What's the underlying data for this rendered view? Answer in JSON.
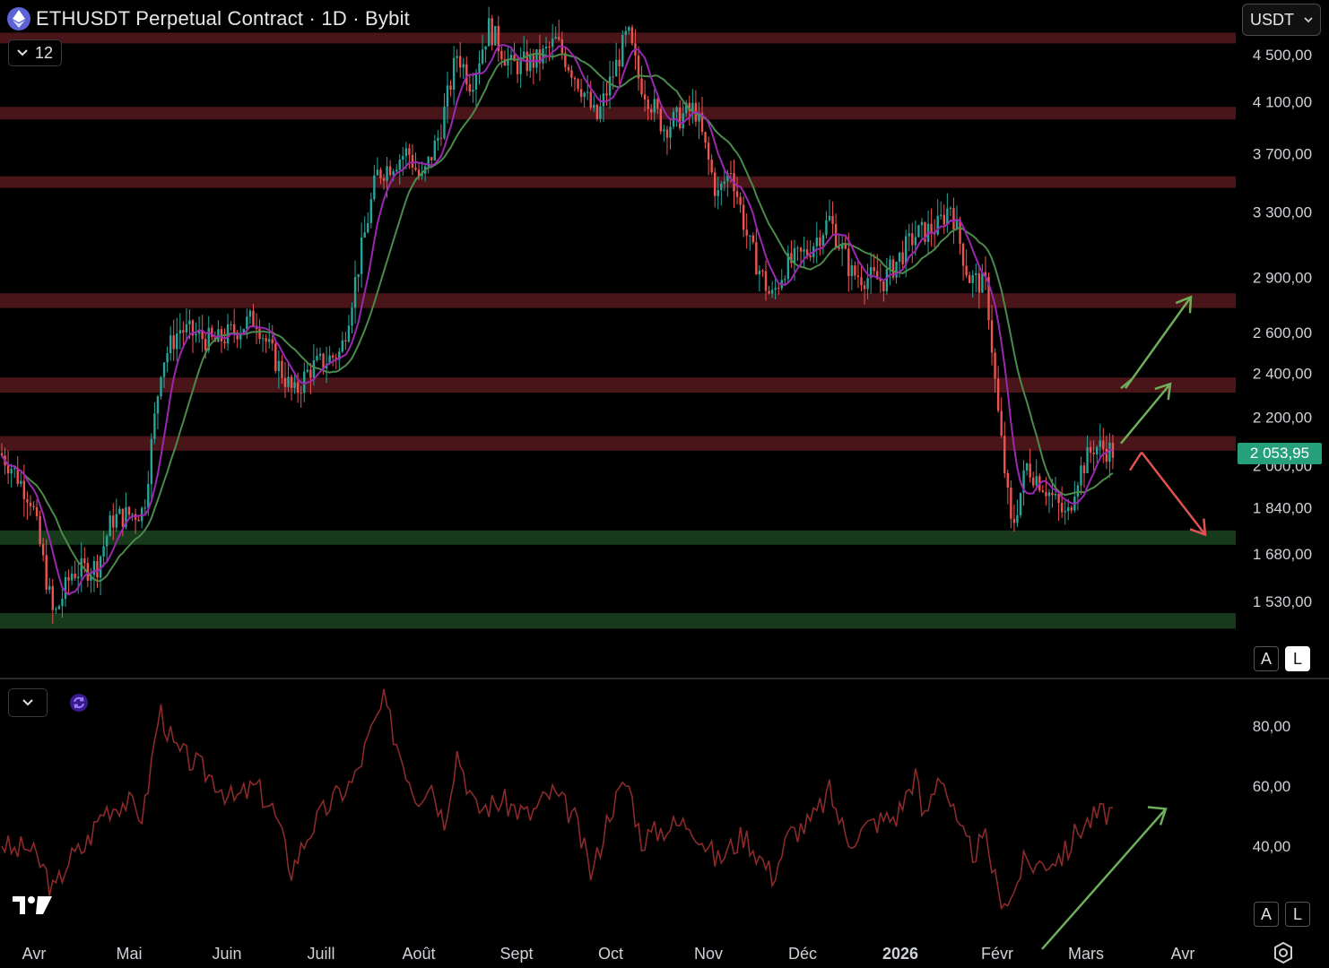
{
  "header": {
    "title": "ETHUSDT Perpetual Contract · 1D · Bybit",
    "indicators_count": "12",
    "currency": "USDT"
  },
  "scale_buttons": {
    "auto": "A",
    "log": "L"
  },
  "current_price": "2 053,95",
  "colors": {
    "up": "#26a69a",
    "down": "#ef5350",
    "resistance_zone": "#4a1518",
    "support_zone": "#173a1c",
    "ma_fast": "#9c27b0",
    "ma_slow": "#4c8a4c",
    "rsi_line": "#8b2a2a",
    "arrow_up": "#6fae5a",
    "arrow_down": "#e05252",
    "price_tag": "#26a07a"
  },
  "chart_data": [
    {
      "type": "candlestick",
      "scale": "log",
      "ylim": [
        1400,
        4900
      ],
      "y_ticks": [
        {
          "value": 4500,
          "label": "4 500,00"
        },
        {
          "value": 4100,
          "label": "4 100,00"
        },
        {
          "value": 3700,
          "label": "3 700,00"
        },
        {
          "value": 3300,
          "label": "3 300,00"
        },
        {
          "value": 2900,
          "label": "2 900,00"
        },
        {
          "value": 2600,
          "label": "2 600,00"
        },
        {
          "value": 2400,
          "label": "2 400,00"
        },
        {
          "value": 2200,
          "label": "2 200,00"
        },
        {
          "value": 2000,
          "label": "2 000,00"
        },
        {
          "value": 1840,
          "label": "1 840,00"
        },
        {
          "value": 1680,
          "label": "1 680,00"
        },
        {
          "value": 1530,
          "label": "1 530,00"
        }
      ],
      "x_ticks": [
        "Avr",
        "Mai",
        "Juin",
        "Juill",
        "Août",
        "Sept",
        "Oct",
        "Nov",
        "Déc",
        "2026",
        "Févr",
        "Mars",
        "Avr"
      ],
      "series_close_monthly": [
        {
          "month": "Avr",
          "close": 1800
        },
        {
          "month": "Mai",
          "close": 2530
        },
        {
          "month": "Juin",
          "close": 2470
        },
        {
          "month": "Juill",
          "close": 3700
        },
        {
          "month": "Août",
          "close": 4380
        },
        {
          "month": "Sept",
          "close": 4150
        },
        {
          "month": "Oct",
          "close": 3850
        },
        {
          "month": "Nov",
          "close": 2980
        },
        {
          "month": "Déc",
          "close": 2970
        },
        {
          "month": "2026",
          "close": 2430
        },
        {
          "month": "Févr",
          "close": 1970
        },
        {
          "month": "Mars",
          "close": 2054
        }
      ],
      "resistance_zones": [
        [
          4620,
          4700
        ],
        [
          3960,
          4060
        ],
        [
          3460,
          3540
        ],
        [
          2730,
          2810
        ],
        [
          2310,
          2380
        ],
        [
          2060,
          2120
        ]
      ],
      "support_zones": [
        [
          1720,
          1760
        ],
        [
          1450,
          1495
        ]
      ],
      "projection_arrows": [
        {
          "direction": "up",
          "from": 2330,
          "to": 2790
        },
        {
          "direction": "up",
          "from": 2090,
          "to": 2350
        },
        {
          "direction": "down",
          "from": 2090,
          "to": 1730
        }
      ]
    },
    {
      "type": "line",
      "name": "RSI",
      "ylim": [
        20,
        90
      ],
      "y_ticks": [
        {
          "value": 80,
          "label": "80,00"
        },
        {
          "value": 60,
          "label": "60,00"
        },
        {
          "value": 40,
          "label": "40,00"
        }
      ],
      "values_monthly": [
        40,
        57,
        62,
        48,
        86,
        58,
        52,
        40,
        45,
        66,
        28,
        48
      ],
      "trend_arrow": {
        "from": 23,
        "to": 50
      }
    }
  ]
}
